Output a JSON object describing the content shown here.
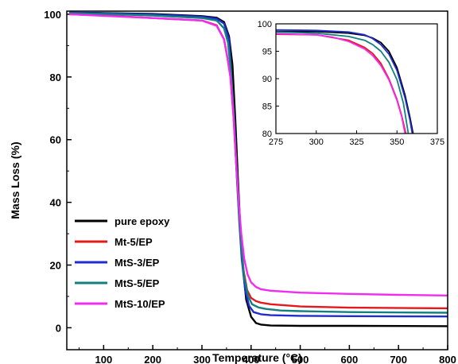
{
  "chart_data": [
    {
      "type": "line",
      "title": "",
      "xlabel": "Temperature (°C)",
      "ylabel": "Mass Loss (%)",
      "xlim": [
        25,
        800
      ],
      "ylim": [
        -7,
        101
      ],
      "xticks": [
        100,
        200,
        300,
        400,
        500,
        600,
        700,
        800
      ],
      "yticks": [
        0,
        20,
        40,
        60,
        80,
        100
      ],
      "grid": false,
      "legend_position": "lower-left",
      "series": [
        {
          "name": "pure epoxy",
          "color": "#000000",
          "x": [
            30,
            100,
            200,
            300,
            330,
            345,
            355,
            362,
            368,
            373,
            378,
            383,
            390,
            400,
            410,
            420,
            440,
            500,
            600,
            800
          ],
          "y": [
            100.5,
            100.4,
            100.1,
            99.4,
            98.9,
            97.5,
            93,
            84,
            66,
            48,
            32,
            20,
            9,
            3.5,
            1.5,
            1,
            0.7,
            0.6,
            0.6,
            0.5
          ]
        },
        {
          "name": "Mt-5/EP",
          "color": "#e31a1c",
          "x": [
            30,
            100,
            200,
            300,
            330,
            345,
            352,
            358,
            364,
            370,
            375,
            380,
            385,
            392,
            400,
            410,
            420,
            440,
            500,
            600,
            800
          ],
          "y": [
            100,
            99.6,
            98.8,
            98,
            96.5,
            92,
            86,
            80,
            68,
            52,
            38,
            26,
            18,
            12,
            9.5,
            8.5,
            8,
            7.5,
            6.8,
            6.4,
            6.2
          ]
        },
        {
          "name": "MtS-3/EP",
          "color": "#1f2ccf",
          "x": [
            30,
            100,
            200,
            300,
            330,
            345,
            355,
            360,
            366,
            371,
            376,
            381,
            388,
            396,
            405,
            420,
            440,
            500,
            600,
            800
          ],
          "y": [
            100.5,
            100.3,
            99.9,
            99.2,
            98.6,
            97,
            92,
            80,
            64,
            48,
            34,
            22,
            12,
            7,
            5,
            4.3,
            4,
            3.8,
            3.7,
            3.6
          ]
        },
        {
          "name": "MtS-5/EP",
          "color": "#138080",
          "x": [
            30,
            100,
            200,
            300,
            330,
            345,
            353,
            359,
            365,
            370,
            375,
            380,
            386,
            394,
            402,
            415,
            430,
            460,
            500,
            600,
            800
          ],
          "y": [
            100.4,
            100.1,
            99.6,
            98.8,
            98,
            95.5,
            91,
            82,
            68,
            52,
            38,
            26,
            16,
            10,
            7.5,
            6.5,
            6,
            5.5,
            5.3,
            5,
            4.8
          ]
        },
        {
          "name": "MtS-10/EP",
          "color": "#f02cf0",
          "x": [
            30,
            100,
            200,
            300,
            330,
            345,
            352,
            358,
            364,
            370,
            375,
            380,
            386,
            393,
            400,
            410,
            420,
            440,
            500,
            600,
            700,
            800
          ],
          "y": [
            100,
            99.5,
            98.8,
            98,
            96.3,
            92,
            86,
            80,
            68,
            52,
            40,
            30,
            22,
            17,
            14.5,
            13,
            12.3,
            11.8,
            11.2,
            10.8,
            10.5,
            10.3
          ]
        }
      ]
    },
    {
      "type": "line",
      "title": "",
      "xlabel": "",
      "ylabel": "",
      "xlim": [
        275,
        375
      ],
      "ylim": [
        80,
        100
      ],
      "xticks": [
        275,
        300,
        325,
        350,
        375
      ],
      "yticks": [
        80,
        85,
        90,
        95,
        100
      ],
      "grid": false,
      "placement": "top-right",
      "series": [
        {
          "name": "pure epoxy",
          "color": "#000000",
          "x": [
            275,
            300,
            320,
            330,
            335,
            340,
            345,
            350,
            355,
            358,
            360
          ],
          "y": [
            98.6,
            98.6,
            98.3,
            97.9,
            97.4,
            96.6,
            95,
            92,
            87,
            83,
            80
          ]
        },
        {
          "name": "Mt-5/EP",
          "color": "#e31a1c",
          "x": [
            275,
            300,
            310,
            320,
            330,
            335,
            340,
            345,
            350,
            353,
            355.5
          ],
          "y": [
            98.1,
            98,
            97.5,
            97,
            95.7,
            94.6,
            92.8,
            90,
            86.2,
            83.2,
            80
          ]
        },
        {
          "name": "MtS-3/EP",
          "color": "#1f2ccf",
          "x": [
            275,
            300,
            320,
            330,
            335,
            340,
            345,
            350,
            355,
            358,
            359.5
          ],
          "y": [
            98.9,
            98.8,
            98.5,
            98,
            97.3,
            96.2,
            94.5,
            91.5,
            86.5,
            82.5,
            80
          ]
        },
        {
          "name": "MtS-5/EP",
          "color": "#138080",
          "x": [
            275,
            300,
            320,
            330,
            335,
            340,
            345,
            350,
            354,
            357
          ],
          "y": [
            98.5,
            98.3,
            97.7,
            97,
            96.2,
            95,
            93,
            89.8,
            85.5,
            80
          ]
        },
        {
          "name": "MtS-10/EP",
          "color": "#f02cf0",
          "x": [
            275,
            300,
            310,
            320,
            330,
            335,
            340,
            345,
            350,
            353,
            355
          ],
          "y": [
            98.2,
            98,
            97.6,
            96.8,
            95.4,
            94.2,
            92.4,
            89.8,
            86,
            83,
            80
          ]
        }
      ]
    }
  ]
}
